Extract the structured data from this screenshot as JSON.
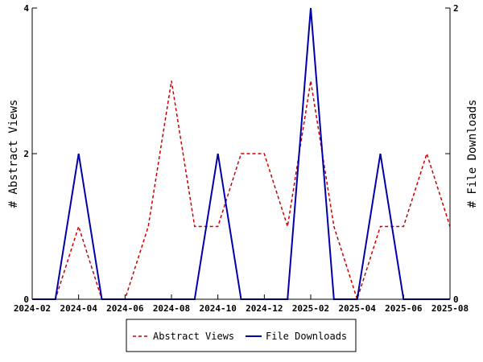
{
  "chart_data": {
    "type": "line",
    "x": [
      "2024-02",
      "2024-03",
      "2024-04",
      "2024-05",
      "2024-06",
      "2024-07",
      "2024-08",
      "2024-09",
      "2024-10",
      "2024-11",
      "2024-12",
      "2025-01",
      "2025-02",
      "2025-03",
      "2025-04",
      "2025-05",
      "2025-06",
      "2025-07",
      "2025-08"
    ],
    "x_tick_labels": [
      "2024-02",
      "2024-04",
      "2024-06",
      "2024-08",
      "2024-10",
      "2024-12",
      "2025-02",
      "2025-04",
      "2025-06",
      "2025-08"
    ],
    "series": [
      {
        "name": "Abstract Views",
        "axis": "left",
        "color": "#cc0000",
        "style": "dashed",
        "values": [
          0,
          0,
          1,
          0,
          0,
          1,
          3,
          1,
          1,
          2,
          2,
          1,
          3,
          1,
          0,
          1,
          1,
          2,
          1
        ]
      },
      {
        "name": "File Downloads",
        "axis": "right",
        "color": "#0000aa",
        "style": "solid",
        "values": [
          0,
          0,
          1,
          0,
          0,
          0,
          0,
          0,
          1,
          0,
          0,
          0,
          2,
          0,
          0,
          1,
          0,
          0,
          0
        ]
      }
    ],
    "ylabel_left": "# Abstract Views",
    "ylabel_right": "# File Downloads",
    "ylim_left": [
      0,
      4
    ],
    "yticks_left": [
      0,
      2,
      4
    ],
    "ylim_right": [
      0,
      2
    ],
    "yticks_right": [
      0,
      1,
      2
    ],
    "ytick_labels_right": [
      "0",
      "",
      "2"
    ],
    "grid": false,
    "legend_position": "bottom-center"
  }
}
